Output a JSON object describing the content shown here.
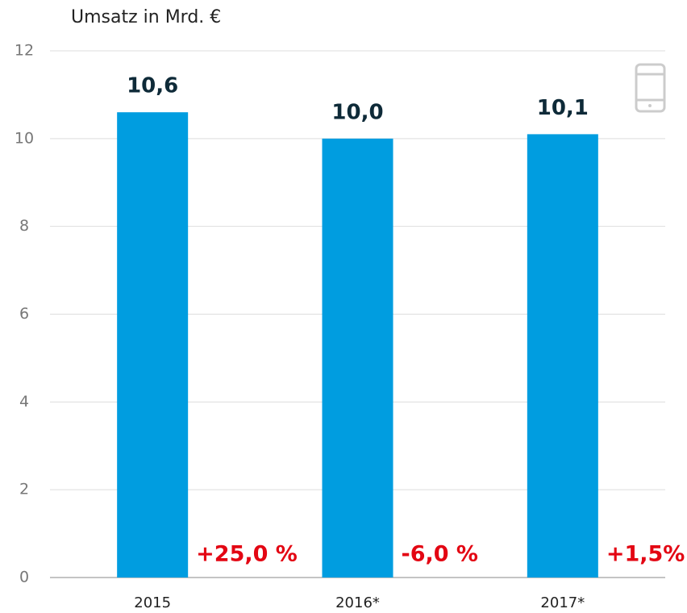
{
  "chart_data": {
    "type": "bar",
    "title": "Umsatz in Mrd. €",
    "categories": [
      "2015",
      "2016*",
      "2017*"
    ],
    "values": [
      10.6,
      10.0,
      10.1
    ],
    "value_labels": [
      "10,6",
      "10,0",
      "10,1"
    ],
    "annotations": [
      "+25,0 %",
      "-6,0 %",
      "+1,5%"
    ],
    "color": "#009de0",
    "ylim": [
      0,
      12
    ],
    "yticks": [
      0,
      2,
      4,
      6,
      8,
      10,
      12
    ],
    "grid": true
  }
}
